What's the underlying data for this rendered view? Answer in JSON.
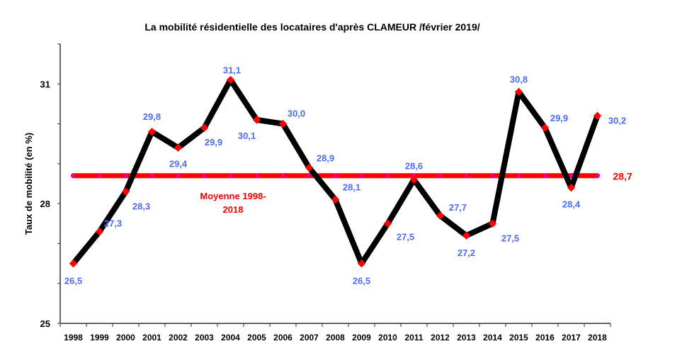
{
  "chart_data": {
    "type": "line",
    "title": "La mobilité résidentielle des locataires d'après CLAMEUR /février 2019/",
    "xlabel": "",
    "ylabel": "Taux de mobilité (en %)",
    "ylim": [
      25,
      32
    ],
    "yticks": [
      25,
      28,
      31
    ],
    "ytick_labels": [
      "25",
      "28",
      "31"
    ],
    "grid": false,
    "x": [
      "1998",
      "1999",
      "2000",
      "2001",
      "2002",
      "2003",
      "2004",
      "2005",
      "2006",
      "2007",
      "2008",
      "2009",
      "2010",
      "2011",
      "2012",
      "2013",
      "2014",
      "2015",
      "2016",
      "2017",
      "2018"
    ],
    "series": [
      {
        "name": "Taux de mobilité",
        "color": "#000000",
        "marker_color": "#ff0000",
        "label_color": "#4d6bff",
        "values": [
          26.5,
          27.3,
          28.3,
          29.8,
          29.4,
          29.9,
          31.1,
          30.1,
          30.0,
          28.9,
          28.1,
          26.5,
          27.5,
          28.6,
          27.7,
          27.2,
          27.5,
          30.8,
          29.9,
          28.4,
          30.2
        ],
        "labels": [
          "26,5",
          "27,3",
          "28,3",
          "29,8",
          "29,4",
          "29,9",
          "31,1",
          "30,1",
          "30,0",
          "28,9",
          "28,1",
          "26,5",
          "27,5",
          "28,6",
          "27,7",
          "27,2",
          "27,5",
          "30,8",
          "29,9",
          "28,4",
          "30,2"
        ]
      },
      {
        "name": "Moyenne 1998-2018",
        "color": "#ff0000",
        "marker_color": "#cc00ff",
        "value": 28.7,
        "label": "28,7",
        "legend_lines": [
          "Moyenne 1998-",
          "2018"
        ]
      }
    ]
  }
}
